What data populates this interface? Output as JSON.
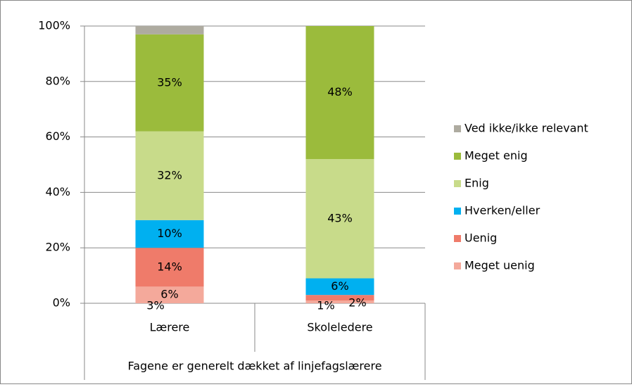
{
  "chart_data": {
    "type": "stacked_bar",
    "categories": [
      "Lærere",
      "Skoleledere"
    ],
    "group_label": "Fagene er generelt dækket af linjefagslærere",
    "series": [
      {
        "name": "Meget uenig",
        "color": "#f4a99b",
        "values": [
          6,
          1
        ],
        "value_labels": [
          "6%",
          "1%"
        ]
      },
      {
        "name": "Uenig",
        "color": "#ef7b6a",
        "values": [
          14,
          2
        ],
        "value_labels": [
          "14%",
          "2%"
        ]
      },
      {
        "name": "Hverken/eller",
        "color": "#00b0f0",
        "values": [
          10,
          6
        ],
        "value_labels": [
          "10%",
          "6%"
        ]
      },
      {
        "name": "Enig",
        "color": "#c8db8a",
        "values": [
          32,
          43
        ],
        "value_labels": [
          "32%",
          "43%"
        ]
      },
      {
        "name": "Meget enig",
        "color": "#9bbb3c",
        "values": [
          35,
          48
        ],
        "value_labels": [
          "35%",
          "48%"
        ]
      },
      {
        "name": "Ved ikke/ikke relevant",
        "color": "#aeaba0",
        "values": [
          3,
          0
        ],
        "value_labels": [
          "3%",
          null
        ]
      }
    ],
    "ylim": [
      0,
      100
    ],
    "yticks": [
      {
        "value": 0,
        "label": "0%"
      },
      {
        "value": 20,
        "label": "20%"
      },
      {
        "value": 40,
        "label": "40%"
      },
      {
        "value": 60,
        "label": "60%"
      },
      {
        "value": 80,
        "label": "80%"
      },
      {
        "value": 100,
        "label": "100%"
      }
    ],
    "grid": true,
    "legend": "right"
  }
}
